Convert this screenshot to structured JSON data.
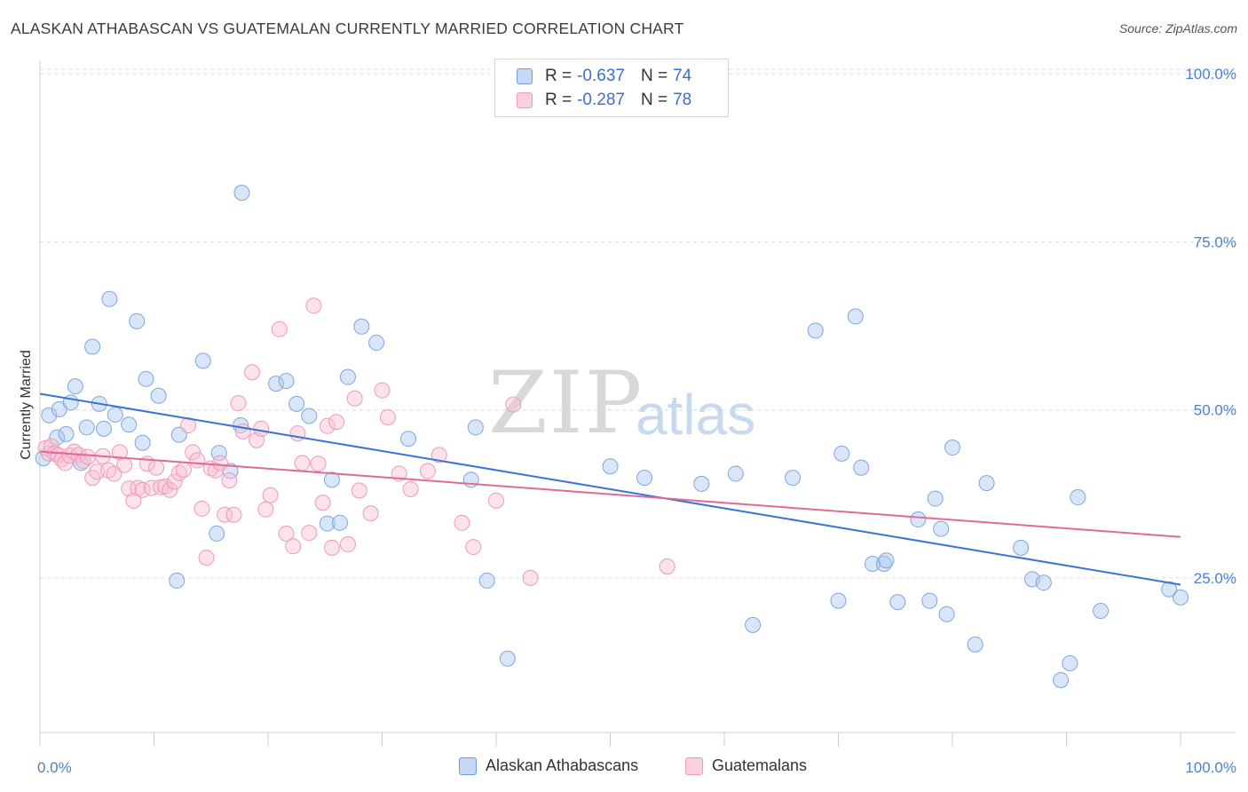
{
  "title": "ALASKAN ATHABASCAN VS GUATEMALAN CURRENTLY MARRIED CORRELATION CHART",
  "source": "Source: ZipAtlas.com",
  "watermark": {
    "zip": "ZIP",
    "atlas": "atlas"
  },
  "legend_top": {
    "rows": [
      {
        "r_label": "R =",
        "r_value": "-0.637",
        "n_label": "N =",
        "n_value": "74",
        "color": "#5b8fdf"
      },
      {
        "r_label": "R =",
        "r_value": "-0.287",
        "n_label": "N =",
        "n_value": "78",
        "color": "#ea7ea0"
      }
    ]
  },
  "legend_bottom": [
    {
      "label": "Alaskan Athabascans",
      "color": "#5b8fdf"
    },
    {
      "label": "Guatemalans",
      "color": "#ea7ea0"
    }
  ],
  "chart_data": {
    "type": "scatter",
    "title": "ALASKAN ATHABASCAN VS GUATEMALAN CURRENTLY MARRIED CORRELATION CHART",
    "xlabel": "",
    "ylabel": "Currently Married",
    "x_tick_labels": [
      "0.0%",
      "100.0%"
    ],
    "y_tick_labels": [
      "100.0%",
      "75.0%",
      "50.0%",
      "25.0%"
    ],
    "y_ticks": [
      100,
      75,
      50,
      25
    ],
    "xlim": [
      0,
      100
    ],
    "ylim": [
      2,
      102
    ],
    "grid": "horizontal dashed",
    "legend_placement": "top-center",
    "series": [
      {
        "name": "Alaskan Athabascans",
        "color": "#5b8fdf",
        "trend": {
          "x": [
            0,
            100
          ],
          "y": [
            52.4,
            24.0
          ]
        },
        "points": [
          [
            0.3,
            42.8
          ],
          [
            0.8,
            49.2
          ],
          [
            1.5,
            45.9
          ],
          [
            1.7,
            50.1
          ],
          [
            2.3,
            46.4
          ],
          [
            2.7,
            51.1
          ],
          [
            3.1,
            53.5
          ],
          [
            3.6,
            42.1
          ],
          [
            4.1,
            47.4
          ],
          [
            4.6,
            59.4
          ],
          [
            5.2,
            50.9
          ],
          [
            5.6,
            47.2
          ],
          [
            6.1,
            66.5
          ],
          [
            6.6,
            49.3
          ],
          [
            7.8,
            47.8
          ],
          [
            8.5,
            63.2
          ],
          [
            9.0,
            45.1
          ],
          [
            9.3,
            54.6
          ],
          [
            10.4,
            52.1
          ],
          [
            12.0,
            24.6
          ],
          [
            12.2,
            46.3
          ],
          [
            14.3,
            57.3
          ],
          [
            15.5,
            31.6
          ],
          [
            15.7,
            43.6
          ],
          [
            16.7,
            40.9
          ],
          [
            17.6,
            47.7
          ],
          [
            17.7,
            82.3
          ],
          [
            20.7,
            53.9
          ],
          [
            21.6,
            54.3
          ],
          [
            22.5,
            50.9
          ],
          [
            23.6,
            49.1
          ],
          [
            25.2,
            33.1
          ],
          [
            25.6,
            39.6
          ],
          [
            26.3,
            33.2
          ],
          [
            27.0,
            54.9
          ],
          [
            28.2,
            62.4
          ],
          [
            29.5,
            60.0
          ],
          [
            32.3,
            45.7
          ],
          [
            37.8,
            39.6
          ],
          [
            38.2,
            47.4
          ],
          [
            39.2,
            24.6
          ],
          [
            41.0,
            13.0
          ],
          [
            50.0,
            41.6
          ],
          [
            53.0,
            39.9
          ],
          [
            58.0,
            39.0
          ],
          [
            61.0,
            40.5
          ],
          [
            66.0,
            39.9
          ],
          [
            68.0,
            61.8
          ],
          [
            70.0,
            21.6
          ],
          [
            70.3,
            43.5
          ],
          [
            71.5,
            63.9
          ],
          [
            72.0,
            41.4
          ],
          [
            73.0,
            27.1
          ],
          [
            74.0,
            27.1
          ],
          [
            74.2,
            27.6
          ],
          [
            75.2,
            21.4
          ],
          [
            77.0,
            33.7
          ],
          [
            78.0,
            21.6
          ],
          [
            78.5,
            36.8
          ],
          [
            79.0,
            32.3
          ],
          [
            79.5,
            19.6
          ],
          [
            80.0,
            44.4
          ],
          [
            82.0,
            15.1
          ],
          [
            83.0,
            39.1
          ],
          [
            86.0,
            29.5
          ],
          [
            87.0,
            24.8
          ],
          [
            88.0,
            24.3
          ],
          [
            89.5,
            9.8
          ],
          [
            90.3,
            12.3
          ],
          [
            91.0,
            37.0
          ],
          [
            93.0,
            20.1
          ],
          [
            100.0,
            22.1
          ],
          [
            99.0,
            23.3
          ],
          [
            62.5,
            18.0
          ]
        ]
      },
      {
        "name": "Guatemalans",
        "color": "#ea7ea0",
        "trend": {
          "x": [
            0,
            100
          ],
          "y": [
            43.8,
            31.1
          ]
        },
        "points": [
          [
            0.5,
            44.3
          ],
          [
            0.8,
            43.5
          ],
          [
            1.0,
            44.6
          ],
          [
            1.3,
            43.5
          ],
          [
            1.6,
            43.3
          ],
          [
            1.9,
            42.6
          ],
          [
            2.2,
            42.1
          ],
          [
            2.6,
            43.2
          ],
          [
            3.0,
            43.8
          ],
          [
            3.4,
            43.3
          ],
          [
            3.8,
            42.4
          ],
          [
            4.2,
            43.0
          ],
          [
            4.6,
            39.9
          ],
          [
            5.0,
            40.8
          ],
          [
            5.5,
            43.1
          ],
          [
            6.0,
            41.0
          ],
          [
            6.5,
            40.5
          ],
          [
            7.0,
            43.7
          ],
          [
            7.4,
            41.8
          ],
          [
            7.8,
            38.3
          ],
          [
            8.2,
            36.5
          ],
          [
            8.6,
            38.4
          ],
          [
            9.0,
            38.1
          ],
          [
            9.4,
            42.0
          ],
          [
            9.8,
            38.4
          ],
          [
            10.2,
            41.4
          ],
          [
            10.6,
            38.5
          ],
          [
            11.0,
            38.6
          ],
          [
            11.4,
            38.1
          ],
          [
            11.8,
            39.3
          ],
          [
            12.2,
            40.6
          ],
          [
            12.6,
            41.1
          ],
          [
            13.0,
            47.7
          ],
          [
            13.4,
            43.7
          ],
          [
            13.8,
            42.5
          ],
          [
            14.2,
            35.3
          ],
          [
            14.6,
            28.0
          ],
          [
            15.0,
            41.3
          ],
          [
            15.4,
            41.0
          ],
          [
            15.8,
            42.1
          ],
          [
            16.2,
            34.4
          ],
          [
            16.6,
            39.5
          ],
          [
            17.0,
            34.4
          ],
          [
            17.4,
            51.0
          ],
          [
            17.8,
            46.8
          ],
          [
            18.6,
            55.6
          ],
          [
            19.0,
            45.5
          ],
          [
            19.4,
            47.2
          ],
          [
            19.8,
            35.2
          ],
          [
            20.2,
            37.3
          ],
          [
            21.0,
            62.0
          ],
          [
            21.6,
            31.6
          ],
          [
            22.2,
            29.7
          ],
          [
            22.6,
            46.5
          ],
          [
            23.0,
            42.1
          ],
          [
            23.6,
            31.7
          ],
          [
            24.0,
            65.5
          ],
          [
            24.4,
            42.0
          ],
          [
            24.8,
            36.2
          ],
          [
            25.2,
            47.6
          ],
          [
            25.6,
            29.5
          ],
          [
            26.0,
            48.2
          ],
          [
            27.0,
            30.0
          ],
          [
            27.6,
            51.7
          ],
          [
            28.0,
            38.0
          ],
          [
            29.0,
            34.6
          ],
          [
            30.0,
            52.9
          ],
          [
            30.5,
            48.9
          ],
          [
            31.5,
            40.5
          ],
          [
            32.5,
            38.2
          ],
          [
            34.0,
            40.9
          ],
          [
            35.0,
            43.3
          ],
          [
            37.0,
            33.2
          ],
          [
            38.0,
            29.6
          ],
          [
            40.0,
            36.5
          ],
          [
            41.5,
            50.8
          ],
          [
            43.0,
            25.0
          ],
          [
            55.0,
            26.7
          ]
        ]
      }
    ]
  }
}
